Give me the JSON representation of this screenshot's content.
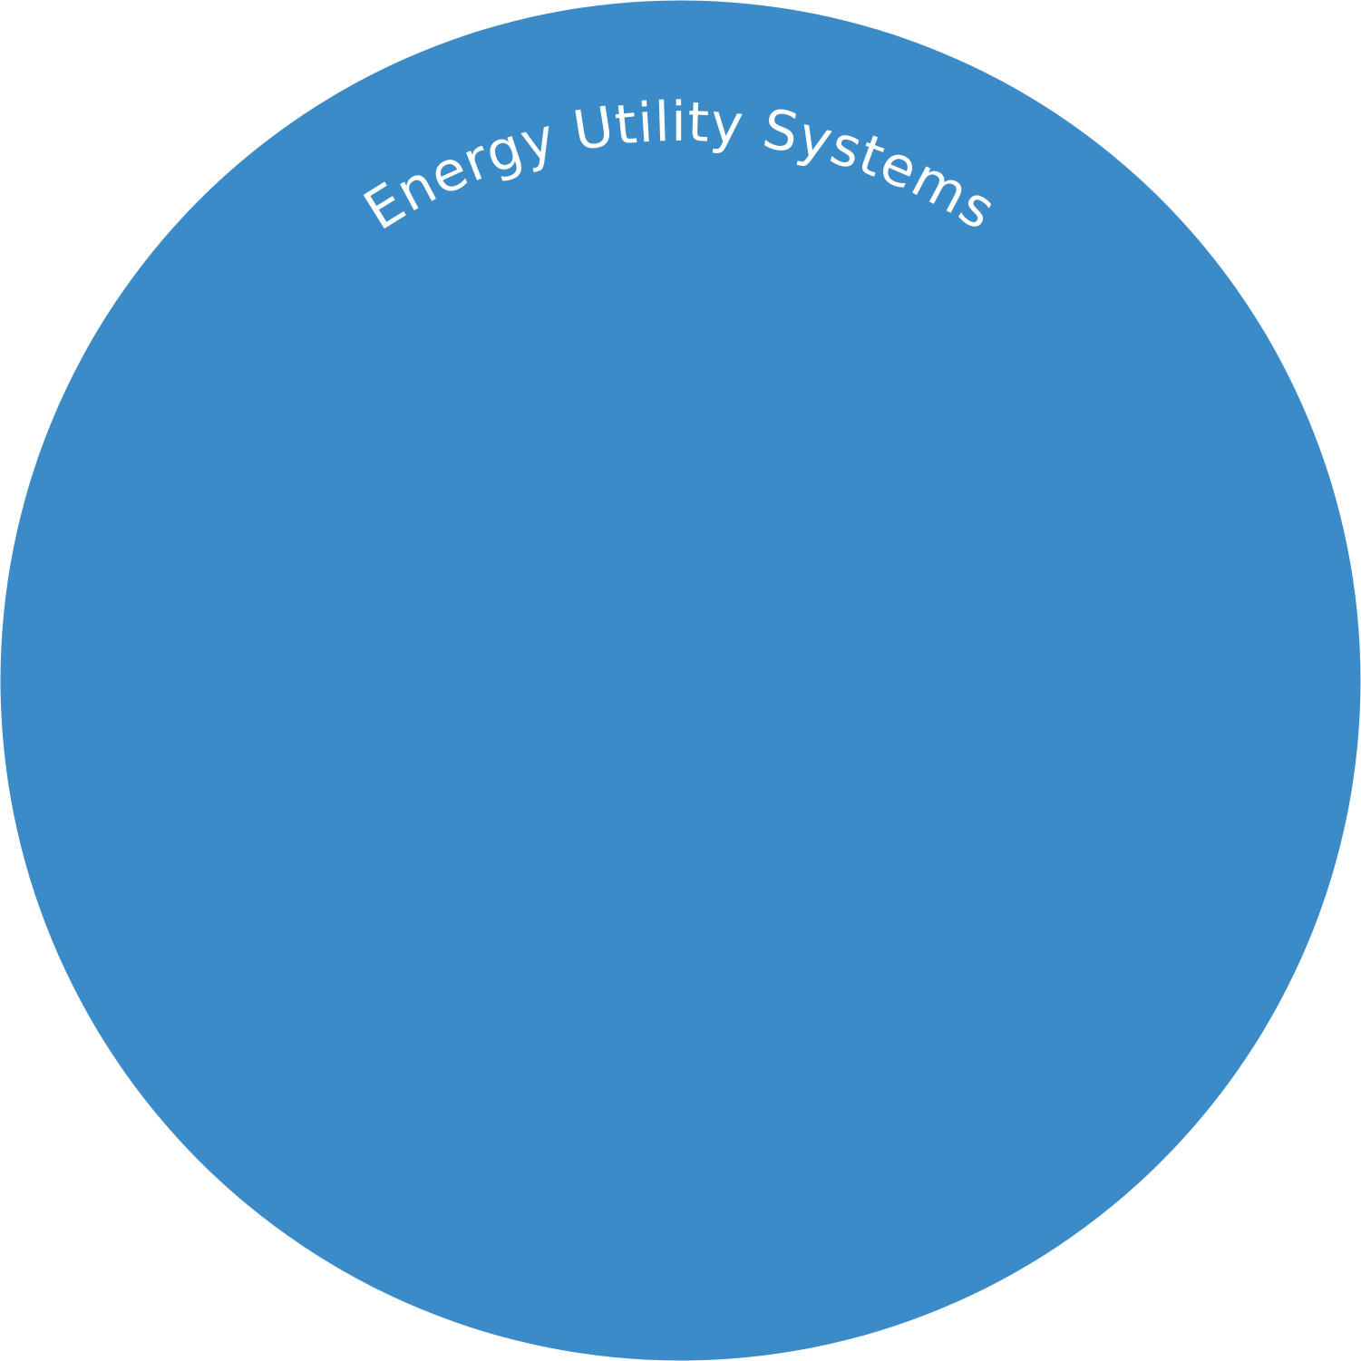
{
  "diagram": {
    "label": "Energy Utility Systems",
    "colors": {
      "circle_fill": "#3c8bc9",
      "label_text": "#ffffff",
      "background": "#ffffff"
    }
  }
}
